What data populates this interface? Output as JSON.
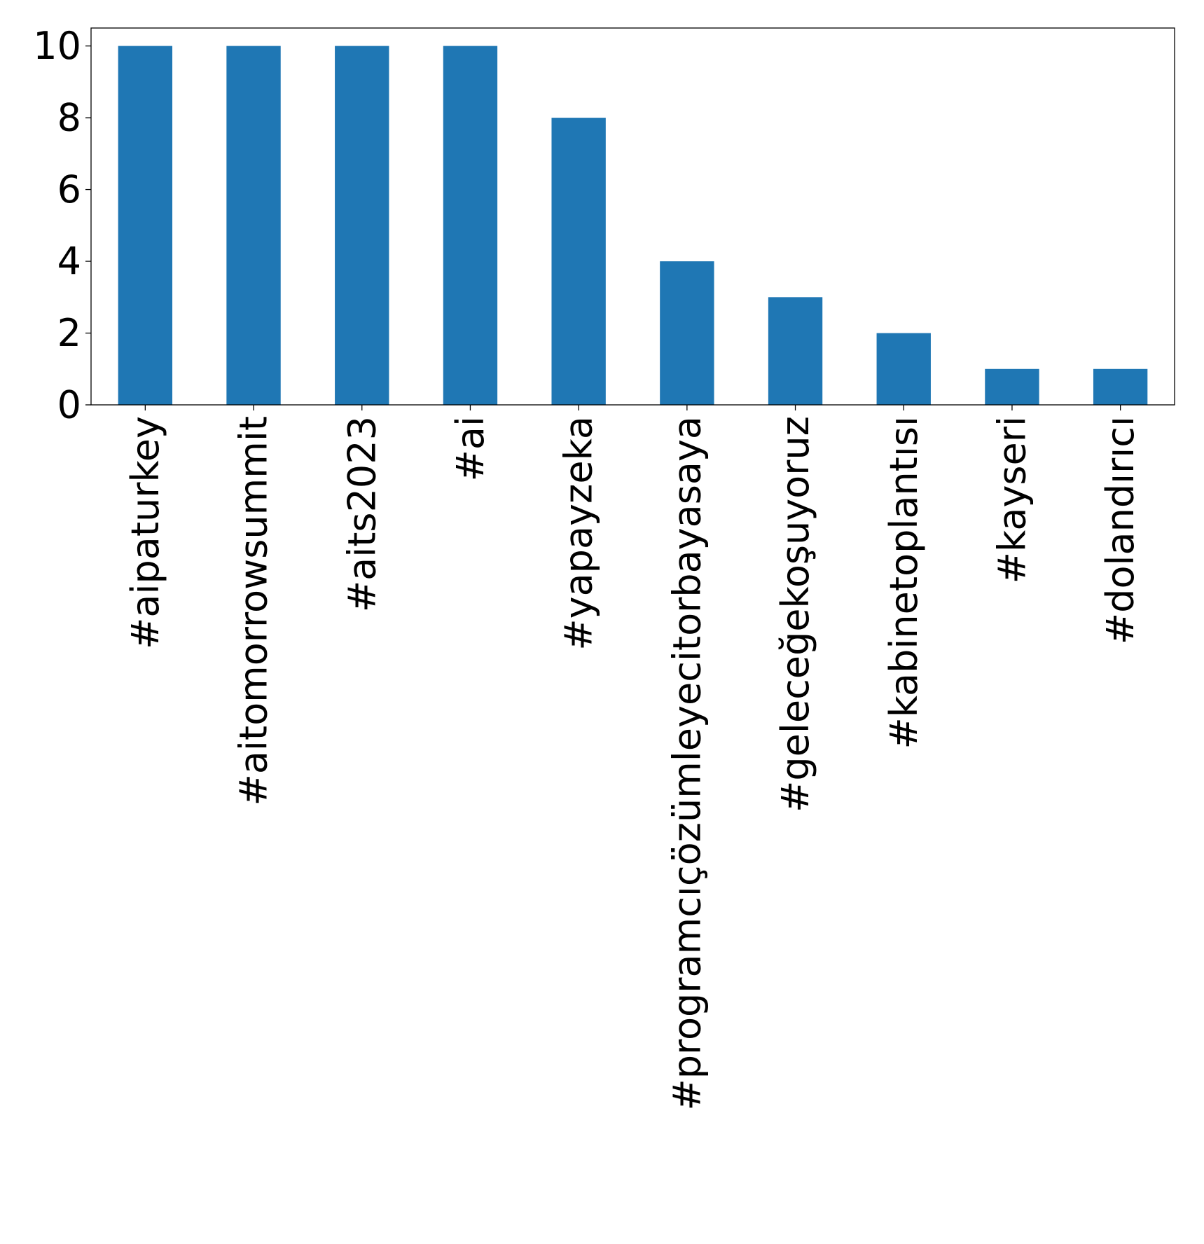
{
  "chart_data": {
    "type": "bar",
    "title": "",
    "xlabel": "",
    "ylabel": "",
    "categories": [
      "#aipaturkey",
      "#aitomorrowsummit",
      "#aits2023",
      "#ai",
      "#yapayzeka",
      "#programcıçözümleyecitorbayasaya",
      "#geleceğekoşuyoruz",
      "#kabinetoplantısı",
      "#kayseri",
      "#dolandırıcı"
    ],
    "values": [
      10,
      10,
      10,
      10,
      8,
      4,
      3,
      2,
      1,
      1
    ],
    "ylim": [
      0,
      10.5
    ],
    "yticks": [
      "0",
      "2",
      "4",
      "6",
      "8",
      "10"
    ],
    "grid": false,
    "legend": "none",
    "bar_color": "#1f77b4"
  }
}
